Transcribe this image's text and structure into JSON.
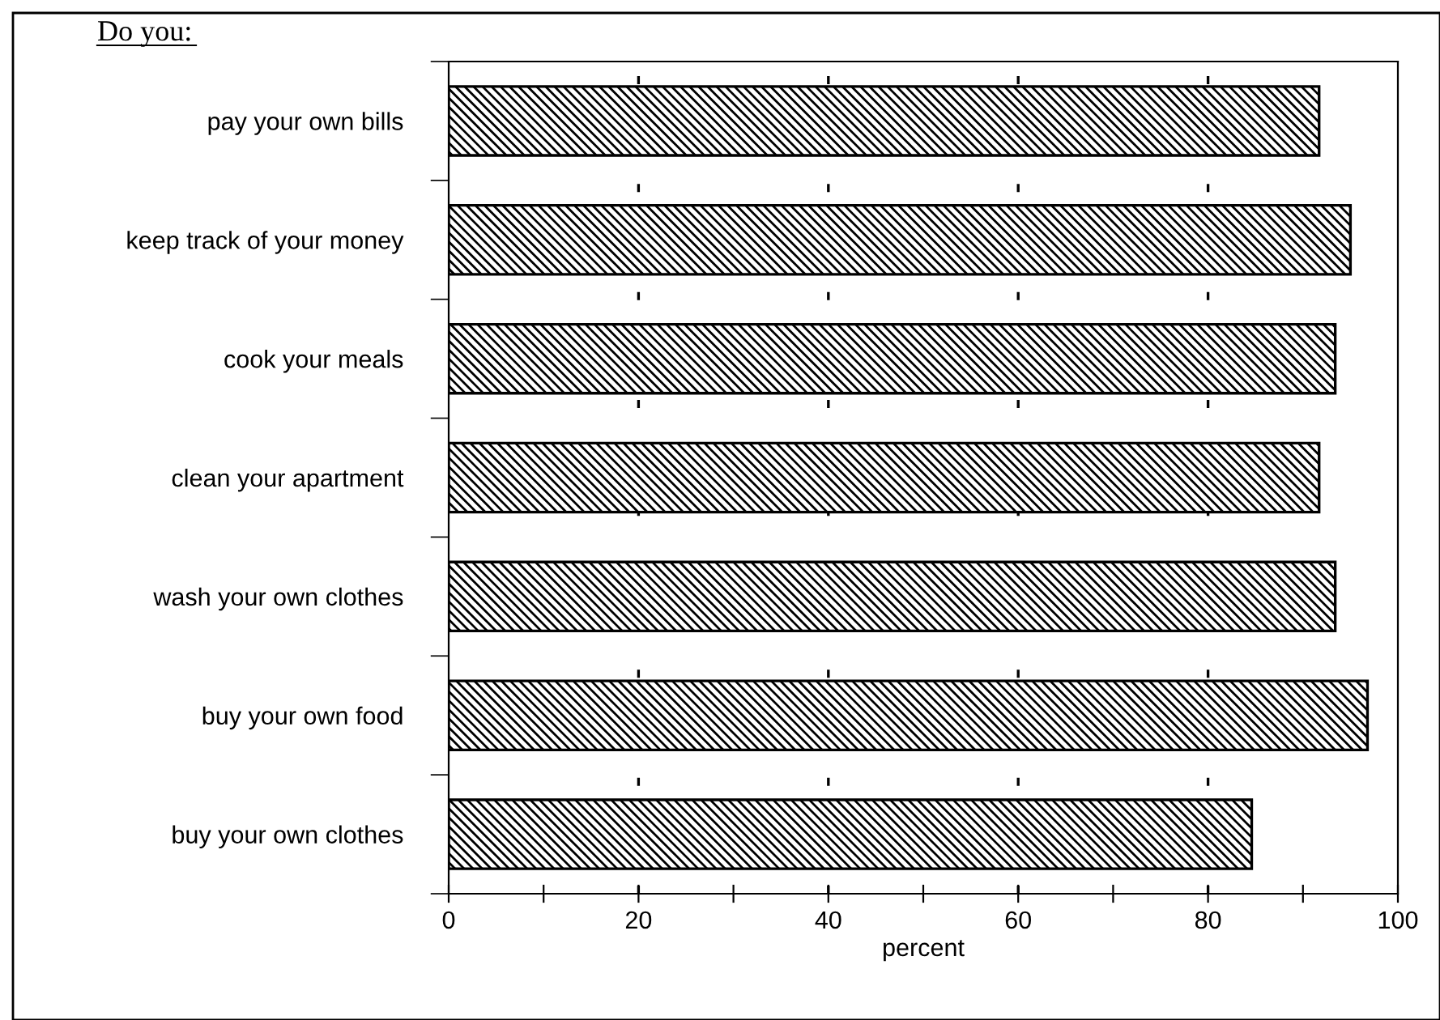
{
  "chart_data": {
    "type": "bar",
    "orientation": "horizontal",
    "categories": [
      "pay your own bills",
      "keep track of your money",
      "cook your meals",
      "clean your apartment",
      "wash your own clothes",
      "buy your own food",
      "buy your own clothes"
    ],
    "values": [
      91.7,
      95.0,
      93.4,
      91.7,
      93.4,
      96.8,
      84.6
    ],
    "color": "#000000",
    "xlabel": "percent",
    "xlim": [
      0,
      100
    ],
    "xticks": [
      0,
      {
        "value": 10,
        "label": null
      },
      20,
      {
        "value": 30,
        "label": null
      },
      40,
      {
        "value": 50,
        "label": null
      },
      60,
      {
        "value": 70,
        "label": null
      },
      80,
      {
        "value": 90,
        "label": null
      },
      100
    ],
    "grid": "x",
    "annotations": [
      "Do you:"
    ]
  }
}
